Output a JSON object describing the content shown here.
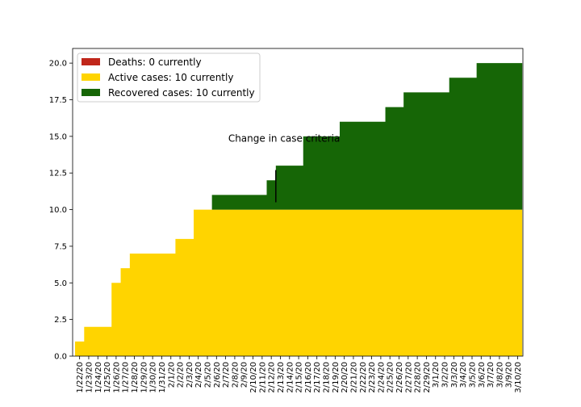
{
  "chart_data": {
    "type": "area",
    "stacked": true,
    "step": true,
    "categories": [
      "1/22/20",
      "1/23/20",
      "1/24/20",
      "1/25/20",
      "1/26/20",
      "1/27/20",
      "1/28/20",
      "1/29/20",
      "1/30/20",
      "1/31/20",
      "2/1/20",
      "2/2/20",
      "2/3/20",
      "2/4/20",
      "2/5/20",
      "2/6/20",
      "2/7/20",
      "2/8/20",
      "2/9/20",
      "2/10/20",
      "2/11/20",
      "2/12/20",
      "2/13/20",
      "2/14/20",
      "2/15/20",
      "2/16/20",
      "2/17/20",
      "2/18/20",
      "2/19/20",
      "2/20/20",
      "2/21/20",
      "2/22/20",
      "2/23/20",
      "2/24/20",
      "2/25/20",
      "2/26/20",
      "2/27/20",
      "2/28/20",
      "2/29/20",
      "3/1/20",
      "3/2/20",
      "3/3/20",
      "3/4/20",
      "3/5/20",
      "3/6/20",
      "3/7/20",
      "3/8/20",
      "3/9/20",
      "3/10/20"
    ],
    "series": [
      {
        "name": "Deaths: 0 currently",
        "color": "#c0261a",
        "values": [
          0,
          0,
          0,
          0,
          0,
          0,
          0,
          0,
          0,
          0,
          0,
          0,
          0,
          0,
          0,
          0,
          0,
          0,
          0,
          0,
          0,
          0,
          0,
          0,
          0,
          0,
          0,
          0,
          0,
          0,
          0,
          0,
          0,
          0,
          0,
          0,
          0,
          0,
          0,
          0,
          0,
          0,
          0,
          0,
          0,
          0,
          0,
          0,
          0
        ]
      },
      {
        "name": "Active cases: 10 currently",
        "color": "#ffd400",
        "values": [
          1,
          2,
          2,
          2,
          5,
          6,
          7,
          7,
          7,
          7,
          7,
          8,
          8,
          10,
          10,
          10,
          10,
          10,
          10,
          10,
          10,
          10,
          10,
          10,
          10,
          10,
          10,
          10,
          10,
          10,
          10,
          10,
          10,
          10,
          10,
          10,
          10,
          10,
          10,
          10,
          10,
          10,
          10,
          10,
          10,
          10,
          10,
          10,
          10
        ]
      },
      {
        "name": "Recovered cases: 10 currently",
        "color": "#166606",
        "values": [
          0,
          0,
          0,
          0,
          0,
          0,
          0,
          0,
          0,
          0,
          0,
          0,
          0,
          0,
          0,
          1,
          1,
          1,
          1,
          1,
          1,
          2,
          3,
          3,
          3,
          5,
          5,
          5,
          5,
          6,
          6,
          6,
          6,
          6,
          7,
          7,
          8,
          8,
          8,
          8,
          8,
          9,
          9,
          9,
          10,
          10,
          10,
          10,
          10
        ]
      }
    ],
    "ylim": [
      0,
      21
    ],
    "yticks": [
      "0.0",
      "2.5",
      "5.0",
      "7.5",
      "10.0",
      "12.5",
      "15.0",
      "17.5",
      "20.0"
    ],
    "xlabel": "",
    "ylabel": "",
    "title": "",
    "legend_position": "top-left",
    "annotation": {
      "text": "Change in case criteria",
      "at_category": "2/13/20",
      "y_from": 10.5,
      "y_to": 12.7
    }
  }
}
